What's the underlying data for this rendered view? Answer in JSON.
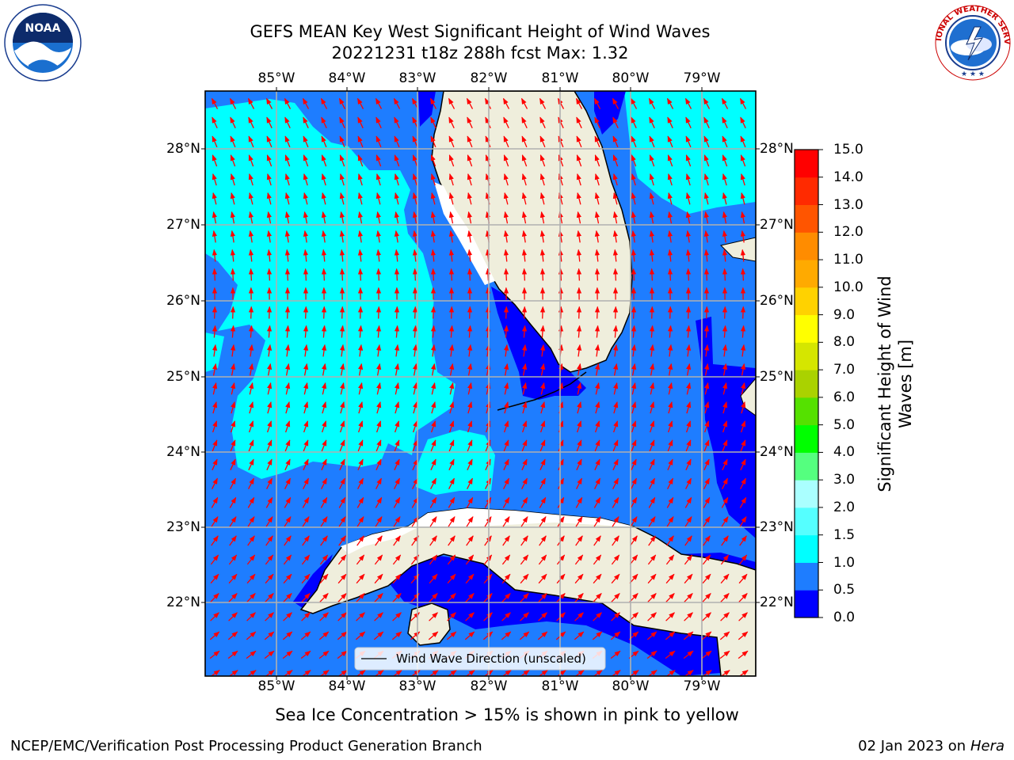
{
  "header": {
    "title_line1": "GEFS MEAN Key West Significant Height of Wind Waves",
    "title_line2": "20221231 t18z 288h fcst   Max: 1.32"
  },
  "logos": {
    "noaa_text": "NOAA",
    "noaa_ring_text": "NATIONAL OCEANIC AND ATMOSPHERIC ADMINISTRATION",
    "noaa_ring_text_bottom": "U.S. DEPARTMENT OF COMMERCE",
    "nws_ring_text": "NATIONAL WEATHER SERVICE"
  },
  "map": {
    "lon_labels": [
      "85°W",
      "84°W",
      "83°W",
      "82°W",
      "81°W",
      "80°W",
      "79°W"
    ],
    "lat_labels": [
      "28°N",
      "27°N",
      "26°N",
      "25°N",
      "24°N",
      "23°N",
      "22°N"
    ],
    "legend_label": "Wind Wave Direction (unscaled)",
    "wave_colors": {
      "0.0-0.5": "#0000ff",
      "0.5-1.0": "#1e7dff",
      "1.0-1.5": "#00ffff",
      "land": "#efeedc",
      "arrow": "#ff0000",
      "grid": "#b0b0b0"
    }
  },
  "colorbar": {
    "label_line1": "Significant Height of Wind",
    "label_line2": "Waves [m]",
    "ticks": [
      "15.0",
      "14.0",
      "13.0",
      "12.0",
      "11.0",
      "10.0",
      "9.0",
      "8.0",
      "7.0",
      "6.0",
      "5.0",
      "4.0",
      "3.0",
      "2.0",
      "1.5",
      "1.0",
      "0.5",
      "0.0"
    ],
    "colors_bottom_to_top": [
      "#0000ff",
      "#1e7dff",
      "#00ffff",
      "#55ffff",
      "#aaffff",
      "#55ff7f",
      "#00ff00",
      "#55e100",
      "#aad200",
      "#d5e600",
      "#ffff00",
      "#ffd200",
      "#ffaa00",
      "#ff8c00",
      "#ff5500",
      "#ff2a00",
      "#ff0000"
    ]
  },
  "notes": {
    "sea_ice": "Sea Ice Concentration > 15% is shown in pink to yellow"
  },
  "footer": {
    "left": "NCEP/EMC/Verification Post Processing Product Generation Branch",
    "right_date": "02 Jan 2023 on ",
    "right_machine": "Hera"
  }
}
